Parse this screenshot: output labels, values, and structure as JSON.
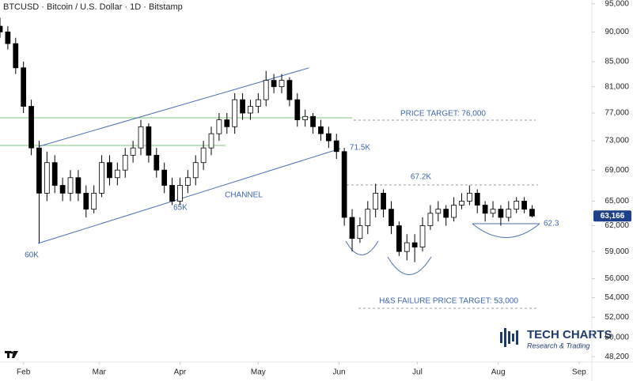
{
  "chart_data": {
    "type": "candlestick",
    "title": "BTCUSD · Bitcoin / U.S. Dollar · 1D · Bitstamp",
    "log": true,
    "up_color": "#ffffff",
    "down_color": "#000000",
    "price_tag": "63,166",
    "annotations": {
      "low_1": "60K",
      "low_2": "65K",
      "channel": "CHANNEL",
      "break": "71.5K",
      "neckline": "67.2K",
      "support": "62.3",
      "target_up": "PRICE TARGET: 76,000",
      "target_down": "H&S FAILURE PRICE TARGET: 53,000"
    },
    "brand": {
      "name": "TECH CHARTS",
      "tagline": "Research & Trading"
    },
    "x": [
      -9,
      -6,
      -3,
      0,
      3,
      6,
      9,
      12,
      15,
      18,
      21,
      24,
      27,
      30,
      33,
      36,
      39,
      42,
      45,
      48,
      51,
      54,
      57,
      60,
      63,
      66,
      69,
      72,
      75,
      78,
      81,
      84,
      87,
      90,
      93,
      96,
      99,
      102,
      105,
      108,
      111,
      114,
      117,
      120,
      123,
      126,
      129,
      132,
      135,
      138,
      141,
      144,
      147,
      150,
      153,
      156,
      159,
      162,
      165,
      168,
      171,
      174,
      177,
      180,
      183,
      186,
      189,
      192,
      195
    ],
    "open": [
      91000,
      90000,
      88000,
      84000,
      78000,
      72000,
      66000,
      70000,
      67000,
      66000,
      68000,
      66000,
      64000,
      66000,
      70000,
      68000,
      69000,
      71000,
      72000,
      75000,
      71000,
      69000,
      67000,
      65000,
      67000,
      68000,
      70000,
      72000,
      74000,
      76000,
      75000,
      79000,
      77000,
      78000,
      79000,
      82000,
      81000,
      82000,
      79000,
      76000,
      76500,
      75000,
      74000,
      73000,
      71500,
      63000,
      60500,
      62000,
      64000,
      66000,
      64000,
      62000,
      59000,
      60000,
      59500,
      62000,
      63500,
      64000,
      63000,
      64500,
      65000,
      66000,
      64500,
      63500,
      64000,
      63000,
      64000,
      65000,
      64000
    ],
    "high": [
      92500,
      91000,
      89000,
      85000,
      79000,
      73000,
      71500,
      71000,
      68000,
      69000,
      69000,
      67000,
      67000,
      71000,
      71000,
      70000,
      72000,
      73000,
      76000,
      75500,
      72000,
      70000,
      68000,
      68000,
      69000,
      71000,
      73000,
      75000,
      77000,
      77000,
      80000,
      80000,
      79000,
      80000,
      83500,
      83000,
      83000,
      82500,
      80000,
      77500,
      77000,
      76000,
      75000,
      74000,
      72000,
      64000,
      63000,
      65000,
      67200,
      66500,
      65000,
      62500,
      61000,
      61000,
      63000,
      64500,
      65000,
      64500,
      65500,
      66000,
      67000,
      66500,
      65000,
      65000,
      64500,
      65000,
      65500,
      65500,
      64500
    ],
    "low": [
      89000,
      87000,
      83000,
      77000,
      71000,
      60000,
      65000,
      66000,
      65000,
      65000,
      65000,
      63000,
      63500,
      65500,
      67000,
      67000,
      68000,
      70000,
      71000,
      70000,
      68000,
      66000,
      64500,
      64500,
      66000,
      67000,
      69000,
      71000,
      73000,
      74000,
      74000,
      76000,
      76000,
      77000,
      78000,
      80000,
      80000,
      78000,
      75000,
      75000,
      74000,
      73000,
      72000,
      70500,
      62000,
      59000,
      60000,
      61000,
      63000,
      63000,
      61000,
      58500,
      58000,
      57800,
      59000,
      61500,
      62500,
      62000,
      62500,
      64000,
      64500,
      63500,
      62500,
      63000,
      62000,
      62500,
      63500,
      63500,
      63000
    ],
    "close": [
      90000,
      88000,
      84000,
      78000,
      72000,
      66000,
      70000,
      67000,
      66000,
      68000,
      66000,
      64000,
      66000,
      70000,
      68000,
      69000,
      71000,
      72000,
      75000,
      71000,
      69000,
      67000,
      65000,
      67000,
      68000,
      70000,
      72000,
      74000,
      76000,
      75000,
      79000,
      77000,
      78000,
      79000,
      82000,
      81000,
      82000,
      79000,
      76000,
      76500,
      75000,
      74000,
      73000,
      71500,
      63000,
      60500,
      62000,
      64000,
      66000,
      64000,
      62000,
      59000,
      60000,
      59500,
      62000,
      63500,
      64000,
      63000,
      64500,
      65000,
      66000,
      64500,
      63500,
      64000,
      63000,
      64000,
      65000,
      64000,
      63166
    ],
    "xlim": [
      -9,
      217
    ],
    "xticks": [
      {
        "value": 0,
        "label": "Feb"
      },
      {
        "value": 29,
        "label": "Mar"
      },
      {
        "value": 60,
        "label": "Apr"
      },
      {
        "value": 90,
        "label": "May"
      },
      {
        "value": 121,
        "label": "Jun"
      },
      {
        "value": 151,
        "label": "Jul"
      },
      {
        "value": 182,
        "label": "Aug"
      },
      {
        "value": 213,
        "label": "Sep"
      }
    ],
    "ylim": [
      47700,
      95700
    ],
    "yticks": [
      {
        "value": 95000,
        "label": "95,000"
      },
      {
        "value": 90000,
        "label": "90,000"
      },
      {
        "value": 85000,
        "label": "85,000"
      },
      {
        "value": 81000,
        "label": "81,000"
      },
      {
        "value": 77000,
        "label": "77,000"
      },
      {
        "value": 73000,
        "label": "73,000"
      },
      {
        "value": 69000,
        "label": "69,000"
      },
      {
        "value": 65000,
        "label": "65,000"
      },
      {
        "value": 62000,
        "label": "62,000"
      },
      {
        "value": 59000,
        "label": "59,000"
      },
      {
        "value": 56000,
        "label": "56,000"
      },
      {
        "value": 54000,
        "label": "54,000"
      },
      {
        "value": 52000,
        "label": "52,000"
      },
      {
        "value": 50000,
        "label": "50,000"
      },
      {
        "value": 48200,
        "label": "48,200"
      }
    ]
  }
}
